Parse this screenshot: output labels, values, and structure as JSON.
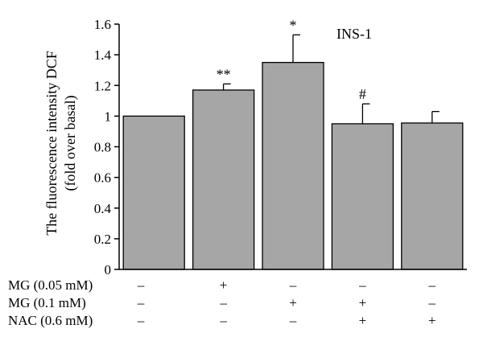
{
  "chart_data": {
    "type": "bar",
    "ylabel_line1": "The fluorescence intensity DCF",
    "ylabel_line2": "(fold over basal)",
    "annotation": "INS-1",
    "ylim": [
      0,
      1.6
    ],
    "yticks": [
      "0",
      "0.2",
      "0.4",
      "0.6",
      "0.8",
      "1",
      "1.2",
      "1.4",
      "1.6"
    ],
    "values": [
      1.0,
      1.17,
      1.35,
      0.95,
      0.955
    ],
    "errors": [
      0,
      0.04,
      0.18,
      0.13,
      0.075
    ],
    "significance": [
      "",
      "**",
      "*",
      "#",
      ""
    ],
    "bar_color": "#a6a6a6",
    "conditions": [
      {
        "label": "MG (0.05 mM)",
        "symbols": [
          "–",
          "+",
          "–",
          "–",
          "–"
        ]
      },
      {
        "label": "MG (0.1 mM)",
        "symbols": [
          "–",
          "–",
          "+",
          "+",
          "–"
        ]
      },
      {
        "label": "NAC (0.6 mM)",
        "symbols": [
          "–",
          "–",
          "–",
          "+",
          "+"
        ]
      }
    ]
  }
}
